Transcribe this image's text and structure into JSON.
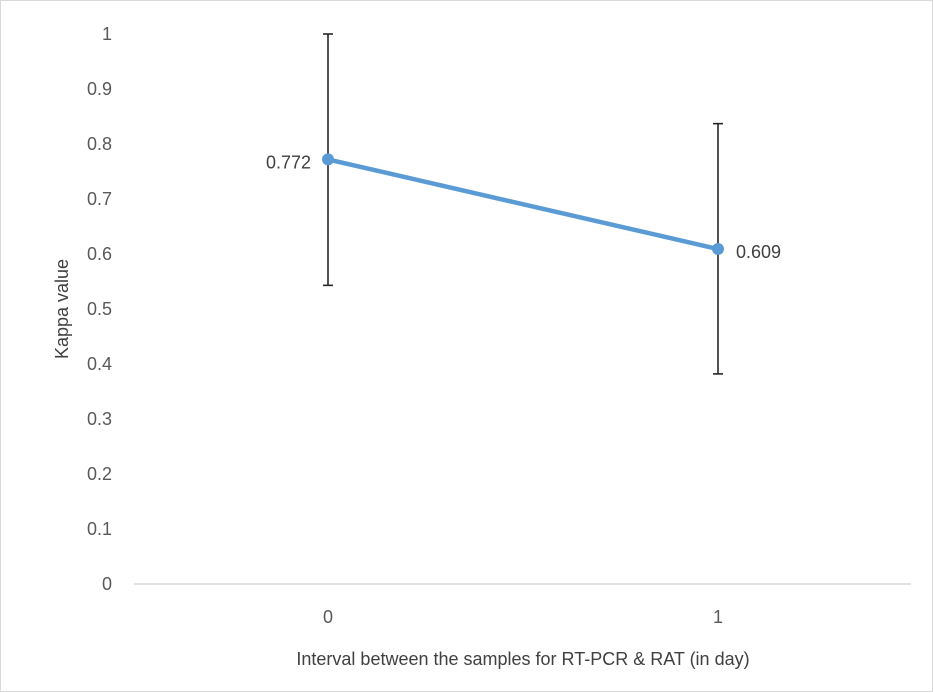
{
  "chart_data": {
    "type": "line",
    "title": "",
    "xlabel": "Interval between the samples for RT-PCR & RAT (in day)",
    "ylabel": "Kappa value",
    "categories": [
      "0",
      "1"
    ],
    "ylim": [
      0,
      1
    ],
    "yticks": [
      "0",
      "0.1",
      "0.2",
      "0.3",
      "0.4",
      "0.5",
      "0.6",
      "0.7",
      "0.8",
      "0.9",
      "1"
    ],
    "grid": false,
    "legend": "none",
    "series": [
      {
        "values": [
          0.772,
          0.609
        ],
        "error_low": [
          0.543,
          0.382
        ],
        "error_high": [
          1.0,
          0.837
        ],
        "data_labels": [
          "0.772",
          "0.609"
        ],
        "color": "#5b9bd5"
      }
    ],
    "axis_color": "#d9d9d9",
    "error_bar_color": "#262626"
  }
}
